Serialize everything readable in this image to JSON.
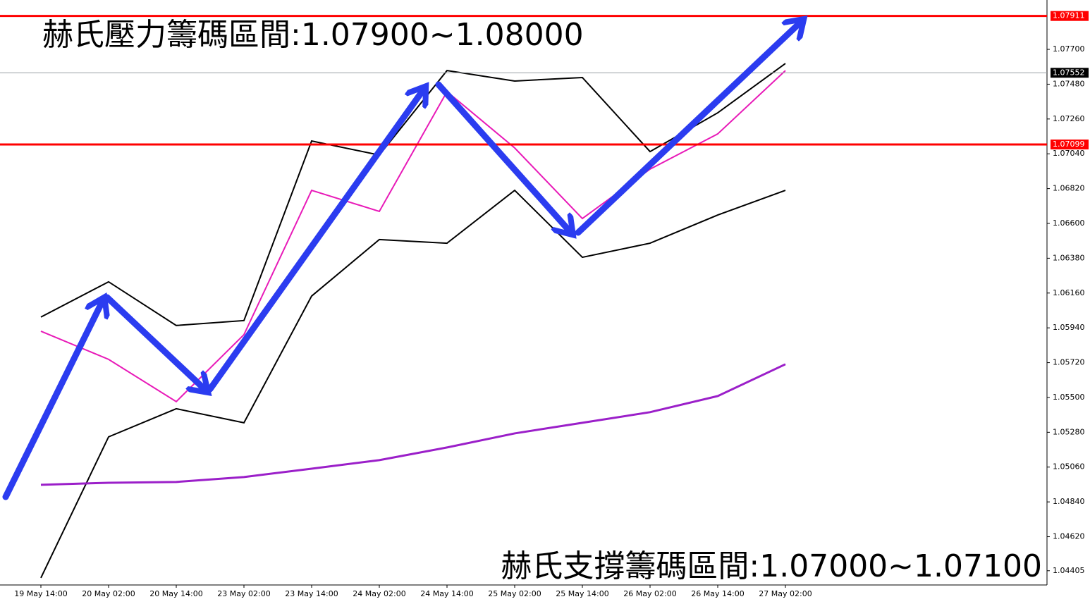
{
  "chart_data": {
    "type": "line",
    "annotations": [
      "赫氏壓力籌碼區間:1.07900~1.08000",
      "赫氏支撐籌碼區間:1.07000~1.07100"
    ],
    "categories": [
      "19 May 14:00",
      "20 May 02:00",
      "20 May 14:00",
      "23 May 02:00",
      "23 May 14:00",
      "24 May 02:00",
      "24 May 14:00",
      "25 May 02:00",
      "25 May 14:00",
      "26 May 02:00",
      "26 May 14:00",
      "27 May 02:00"
    ],
    "series": [
      {
        "color": "#000000",
        "values": [
          1.06008,
          1.06231,
          1.05955,
          1.05986,
          1.07121,
          1.07032,
          1.07566,
          1.075,
          1.07522,
          1.07054,
          1.07299,
          1.07611
        ]
      },
      {
        "color": "#000000",
        "values": [
          1.0436,
          1.05251,
          1.05429,
          1.0534,
          1.06141,
          1.06498,
          1.06475,
          1.06809,
          1.06386,
          1.06475,
          1.06653,
          1.06809
        ]
      },
      {
        "color": "#9b1fc9",
        "values": [
          1.04948,
          1.04961,
          1.04966,
          1.04997,
          1.0505,
          1.05104,
          1.05184,
          1.05273,
          1.0534,
          1.05407,
          1.05509,
          1.0571
        ]
      },
      {
        "color": "#e81ab8",
        "values": [
          1.05919,
          1.05741,
          1.05474,
          1.05897,
          1.06809,
          1.06676,
          1.07433,
          1.07077,
          1.06631,
          1.06943,
          1.07166,
          1.07566
        ]
      }
    ],
    "levels": [
      {
        "value": 1.07911,
        "color": "#ff0000"
      },
      {
        "value": 1.07552,
        "color": "#000000"
      },
      {
        "value": 1.07099,
        "color": "#ff0000"
      }
    ],
    "ylim": [
      1.04315,
      1.08012
    ],
    "yticks": [
      {
        "value": 1.077,
        "label": "1.07700"
      },
      {
        "value": 1.0748,
        "label": "1.07480"
      },
      {
        "value": 1.0726,
        "label": "1.07260"
      },
      {
        "value": 1.0704,
        "label": "1.07040"
      },
      {
        "value": 1.0682,
        "label": "1.06820"
      },
      {
        "value": 1.066,
        "label": "1.06600"
      },
      {
        "value": 1.0638,
        "label": "1.06380"
      },
      {
        "value": 1.0616,
        "label": "1.06160"
      },
      {
        "value": 1.0594,
        "label": "1.05940"
      },
      {
        "value": 1.0572,
        "label": "1.05720"
      },
      {
        "value": 1.055,
        "label": "1.05500"
      },
      {
        "value": 1.0528,
        "label": "1.05280"
      },
      {
        "value": 1.0506,
        "label": "1.05060"
      },
      {
        "value": 1.0484,
        "label": "1.04840"
      },
      {
        "value": 1.0462,
        "label": "1.04620"
      },
      1.04405
    ]
  }
}
